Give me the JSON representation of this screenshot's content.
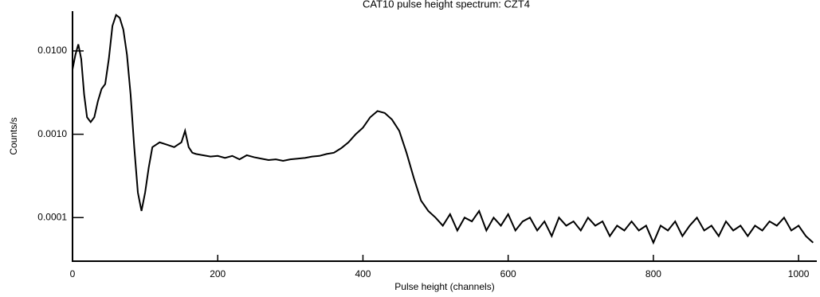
{
  "chart_data": {
    "type": "line",
    "title": "CAT10 pulse height spectrum: CZT4",
    "x_label": "Pulse height (channels)",
    "y_label": "Counts/s",
    "log_y": true,
    "color": "#000000",
    "xlim": [
      0,
      1024
    ],
    "xticks": [
      0,
      200,
      400,
      600,
      800,
      1000
    ],
    "ylim": [
      3e-05,
      0.03
    ],
    "yticks": [
      {
        "value": 0.0001,
        "label": "0.0001"
      },
      {
        "value": 0.001,
        "label": "0.0010"
      },
      {
        "value": 0.01,
        "label": "0.0100"
      }
    ],
    "x": [
      0,
      4,
      8,
      12,
      16,
      20,
      25,
      30,
      35,
      40,
      45,
      50,
      55,
      60,
      65,
      70,
      75,
      80,
      85,
      90,
      95,
      100,
      105,
      110,
      120,
      130,
      140,
      150,
      155,
      160,
      165,
      170,
      180,
      190,
      200,
      210,
      220,
      230,
      240,
      250,
      260,
      270,
      280,
      290,
      300,
      310,
      320,
      330,
      340,
      350,
      360,
      370,
      380,
      390,
      400,
      410,
      420,
      430,
      440,
      450,
      460,
      470,
      480,
      490,
      500,
      510,
      520,
      530,
      540,
      550,
      560,
      570,
      580,
      590,
      600,
      610,
      620,
      630,
      640,
      650,
      660,
      670,
      680,
      690,
      700,
      710,
      720,
      730,
      740,
      750,
      760,
      770,
      780,
      790,
      800,
      810,
      820,
      830,
      840,
      850,
      860,
      870,
      880,
      890,
      900,
      910,
      920,
      930,
      940,
      950,
      960,
      970,
      980,
      990,
      1000,
      1010,
      1020
    ],
    "values": [
      0.006,
      0.009,
      0.012,
      0.008,
      0.003,
      0.0016,
      0.0014,
      0.0016,
      0.0025,
      0.0035,
      0.004,
      0.008,
      0.02,
      0.027,
      0.025,
      0.018,
      0.009,
      0.003,
      0.0007,
      0.0002,
      0.00012,
      0.0002,
      0.0004,
      0.0007,
      0.0008,
      0.00075,
      0.0007,
      0.0008,
      0.0011,
      0.0007,
      0.0006,
      0.00058,
      0.00056,
      0.00054,
      0.00055,
      0.00052,
      0.00055,
      0.0005,
      0.00056,
      0.00053,
      0.00051,
      0.00049,
      0.0005,
      0.00048,
      0.0005,
      0.00051,
      0.00052,
      0.00054,
      0.00055,
      0.00058,
      0.0006,
      0.00068,
      0.0008,
      0.001,
      0.0012,
      0.0016,
      0.0019,
      0.0018,
      0.0015,
      0.0011,
      0.0006,
      0.0003,
      0.00016,
      0.00012,
      0.0001,
      8e-05,
      0.00011,
      7e-05,
      0.0001,
      9e-05,
      0.00012,
      7e-05,
      0.0001,
      8e-05,
      0.00011,
      7e-05,
      9e-05,
      0.0001,
      7e-05,
      9e-05,
      6e-05,
      0.0001,
      8e-05,
      9e-05,
      7e-05,
      0.0001,
      8e-05,
      9e-05,
      6e-05,
      8e-05,
      7e-05,
      9e-05,
      7e-05,
      8e-05,
      5e-05,
      8e-05,
      7e-05,
      9e-05,
      6e-05,
      8e-05,
      0.0001,
      7e-05,
      8e-05,
      6e-05,
      9e-05,
      7e-05,
      8e-05,
      6e-05,
      8e-05,
      7e-05,
      9e-05,
      8e-05,
      0.0001,
      7e-05,
      8e-05,
      6e-05,
      5e-05
    ]
  }
}
